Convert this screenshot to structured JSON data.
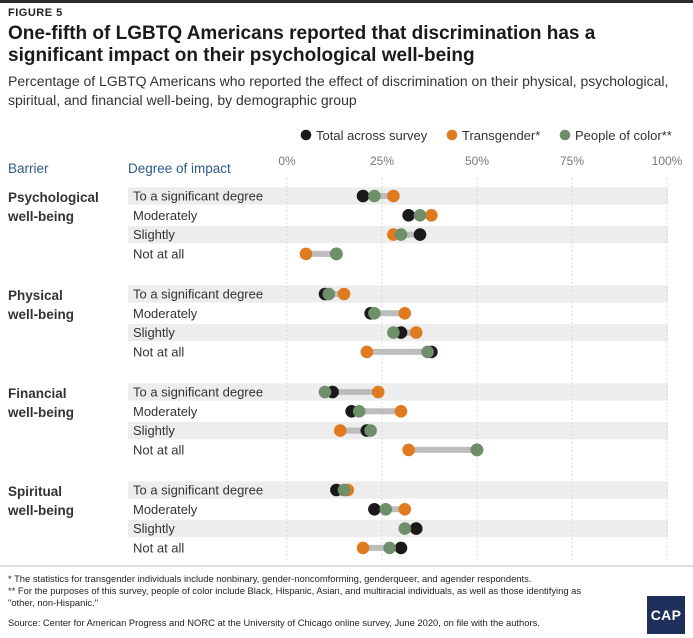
{
  "figure_label": "FIGURE 5",
  "title": "One-fifth of LGBTQ Americans reported that discrimination has a significant impact on their psychological well-being",
  "subtitle": "Percentage of LGBTQ Americans who reported the effect of discrimination on their physical, psychological, spiritual, and financial well-being, by demographic group",
  "footnotes": [
    "* The statistics for transgender individuals include nonbinary, gender-noncomforming, genderqueer, and agender respondents.",
    "** For the purposes of this survey, people of color include Black, Hispanic, Asian, and multiracial individuals, as well as those identifying as \"other, non-Hispanic.\""
  ],
  "source": "Source: Center for American Progress and NORC at the University of Chicago online survey, June 2020, on file with the authors.",
  "logo_text": "CAP",
  "colors": {
    "total": "#1a1a1a",
    "transgender": "#e07a1f",
    "people_of_color": "#6e8f6a",
    "connector": "#bdbdbd",
    "band": "#ededed",
    "gridline": "#d0d0d0",
    "header_text": "#2e5a8c"
  },
  "chart_data": {
    "type": "dot-range",
    "column_headers": {
      "barrier": "Barrier",
      "degree": "Degree of impact"
    },
    "xlim": [
      0,
      100
    ],
    "x_ticks": [
      0,
      25,
      50,
      75,
      100
    ],
    "x_tick_labels": [
      "0%",
      "25%",
      "50%",
      "75%",
      "100%"
    ],
    "legend": [
      {
        "key": "total",
        "label": "Total across survey"
      },
      {
        "key": "transgender",
        "label": "Transgender*"
      },
      {
        "key": "people_of_color",
        "label": "People of color**"
      }
    ],
    "groups": [
      {
        "barrier": "Psychological well-being",
        "rows": [
          {
            "degree": "To a significant degree",
            "total": 20,
            "transgender": 28,
            "people_of_color": 23
          },
          {
            "degree": "Moderately",
            "total": 32,
            "transgender": 38,
            "people_of_color": 35
          },
          {
            "degree": "Slightly",
            "total": 35,
            "transgender": 28,
            "people_of_color": 30
          },
          {
            "degree": "Not at all",
            "total": 13,
            "transgender": 5,
            "people_of_color": 13
          }
        ]
      },
      {
        "barrier": "Physical well-being",
        "rows": [
          {
            "degree": "To a significant degree",
            "total": 10,
            "transgender": 15,
            "people_of_color": 11
          },
          {
            "degree": "Moderately",
            "total": 22,
            "transgender": 31,
            "people_of_color": 23
          },
          {
            "degree": "Slightly",
            "total": 30,
            "transgender": 34,
            "people_of_color": 28
          },
          {
            "degree": "Not at all",
            "total": 38,
            "transgender": 21,
            "people_of_color": 37
          }
        ]
      },
      {
        "barrier": "Financial well-being",
        "rows": [
          {
            "degree": "To a significant degree",
            "total": 12,
            "transgender": 24,
            "people_of_color": 10
          },
          {
            "degree": "Moderately",
            "total": 17,
            "transgender": 30,
            "people_of_color": 19
          },
          {
            "degree": "Slightly",
            "total": 21,
            "transgender": 14,
            "people_of_color": 22
          },
          {
            "degree": "Not at all",
            "total": 50,
            "transgender": 32,
            "people_of_color": 50
          }
        ]
      },
      {
        "barrier": "Spiritual well-being",
        "rows": [
          {
            "degree": "To a significant degree",
            "total": 13,
            "transgender": 16,
            "people_of_color": 15
          },
          {
            "degree": "Moderately",
            "total": 23,
            "transgender": 31,
            "people_of_color": 26
          },
          {
            "degree": "Slightly",
            "total": 34,
            "transgender": 34,
            "people_of_color": 31
          },
          {
            "degree": "Not at all",
            "total": 30,
            "transgender": 20,
            "people_of_color": 27
          }
        ]
      }
    ]
  }
}
